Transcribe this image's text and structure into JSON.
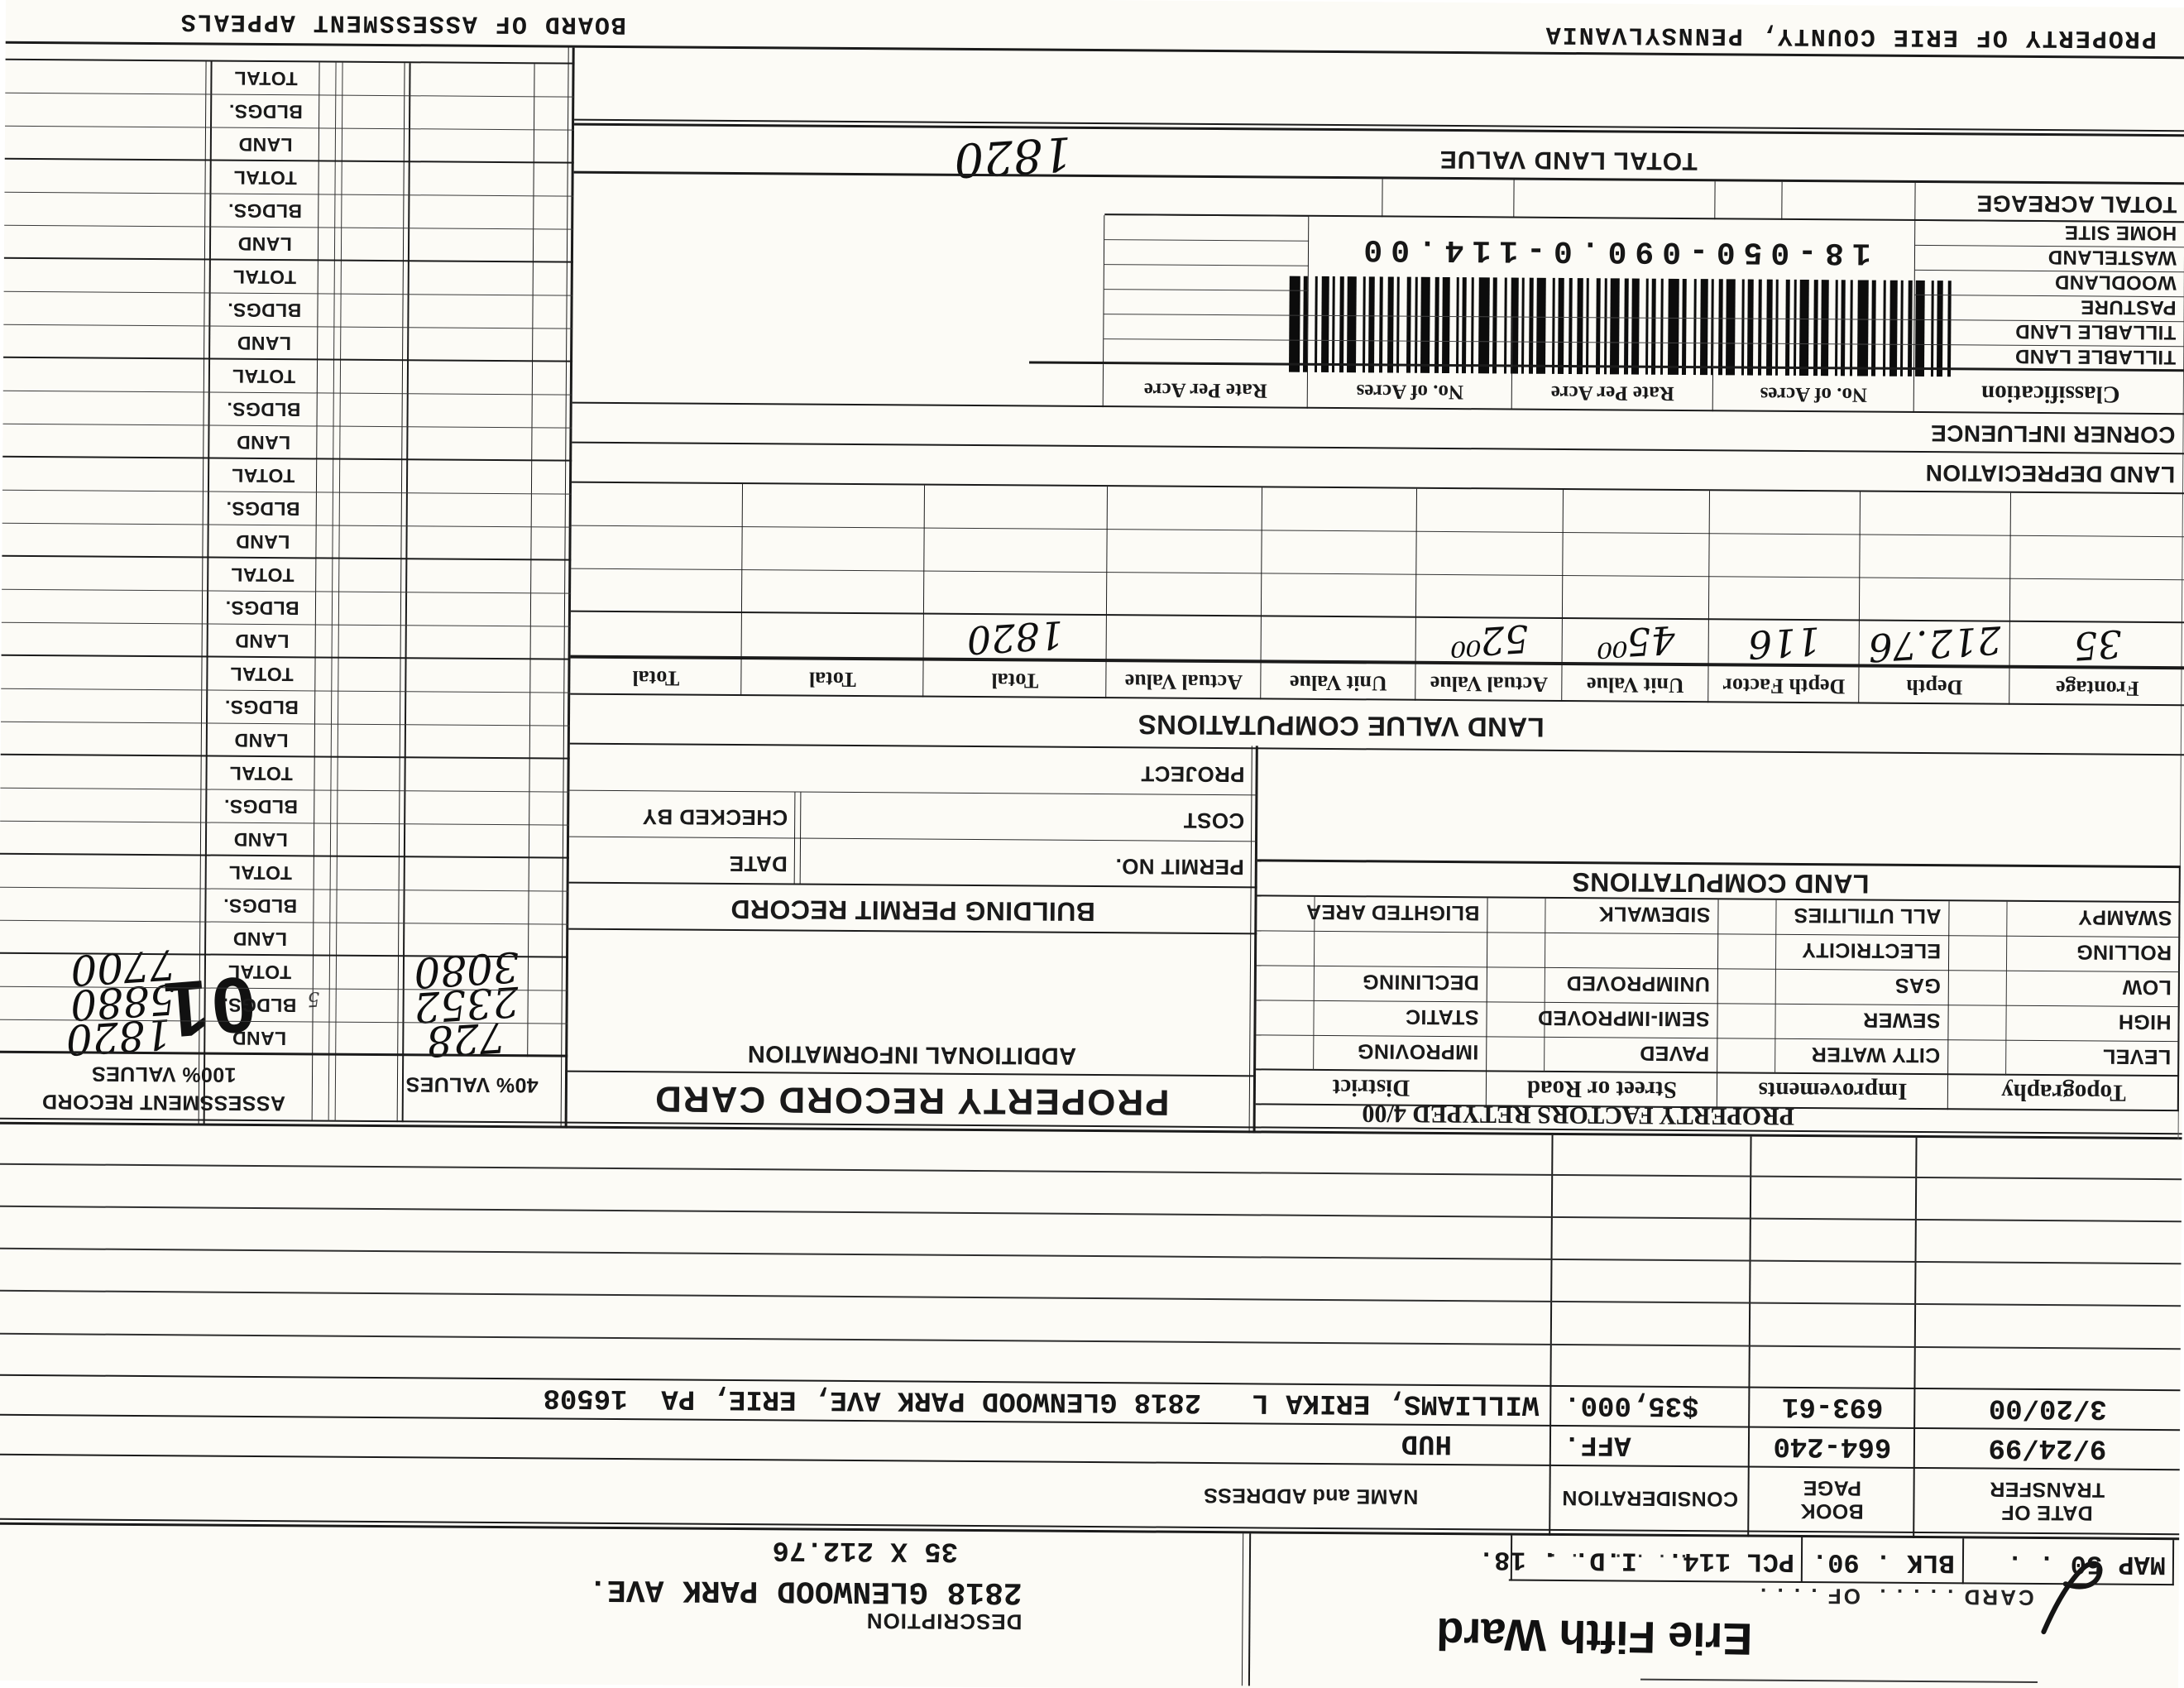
{
  "colors": {
    "paper": "#fcfbf6",
    "ink": "#1a1a1a"
  },
  "stamps": {
    "ward": "Erie Fifth Ward",
    "batch": "01",
    "note": "5"
  },
  "header": {
    "card_of_line": "CARD . . . . .  OF . . . .",
    "map": "MAP 50 . .",
    "blk": "BLK . 90.",
    "pcl": "PCL 114.",
    "pcl_leader": ". . . . . . .",
    "id": "I.D. . 18.",
    "description_label": "DESCRIPTION",
    "address": "2818 GLENWOOD PARK AVE.",
    "dimensions": "35 X 212.76"
  },
  "transfer": {
    "col_date_1": "DATE OF",
    "col_date_2": "TRANSFER",
    "col_book_1": "BOOK",
    "col_book_2": "PAGE",
    "col_consideration": "CONSIDERATION",
    "col_name": "NAME and ADDRESS",
    "rows": [
      {
        "date": "9/24/99",
        "book": "664-240",
        "consideration": "AFF.",
        "name": "HUD"
      },
      {
        "date": "3/20/00",
        "book": "693-61",
        "consideration": "$35,000.",
        "name": "WILLIAMS, ERIKA L   2818 GLENWOOD PARK AVE, ERIE, PA  16508"
      }
    ]
  },
  "titles": {
    "property_record_card": "PROPERTY RECORD CARD",
    "additional_information": "ADDITIONAL INFORMATION",
    "building_permit_record": "BUILDING PERMIT RECORD",
    "land_value_computations": "LAND VALUE COMPUTATIONS",
    "land_computations": "LAND COMPUTATIONS",
    "property_factors": "PROPERTY FACTORS RETYPED 4/00",
    "assessment_record": "ASSESSMENT RECORD",
    "values_100": "100% VALUES",
    "values_40": "40% VALUES",
    "footer_left": "PROPERTY OF ERIE COUNTY, PENNSYLVANIA",
    "footer_right": "BOARD OF ASSESSMENT APPEALS"
  },
  "building_permit": {
    "permit_no": "PERMIT NO.",
    "date": "DATE",
    "cost": "COST",
    "checked_by": "CHECKED BY",
    "project": "PROJECT"
  },
  "land_computations": {
    "columns": [
      "Topography",
      "Improvements",
      "Street or Road",
      "District"
    ],
    "rows": [
      [
        "LEVEL",
        "CITY WATER",
        "PAVED",
        "IMPROVING"
      ],
      [
        "HIGH",
        "SEWER",
        "SEMI-IMPROVED",
        "STATIC"
      ],
      [
        "LOW",
        "GAS",
        "UNIMPROVED",
        "DECLINING"
      ],
      [
        "ROLLING",
        "ELECTRICITY",
        "",
        ""
      ],
      [
        "SWAMPY",
        "ALL UTILITIES",
        "SIDEWALK",
        "BLIGHTED AREA"
      ]
    ]
  },
  "land_value_computations": {
    "headers": [
      "Frontage",
      "Depth",
      "Depth Factor",
      "Unit Value",
      "Actual Value",
      "Unit Value",
      "Actual Value",
      "Total",
      "Total",
      "Total"
    ],
    "values": [
      "35",
      "212.76",
      "116",
      "45⁰⁰",
      "52⁰⁰",
      "",
      "",
      "1820",
      "",
      ""
    ]
  },
  "land_section": {
    "depreciation": "LAND DEPRECIATION",
    "corner": "CORNER INFLUENCE",
    "classification_headers": [
      "Classification",
      "No. of Acres",
      "Rate Per Acre",
      "No. of Acres",
      "Rate Per Acre"
    ],
    "rows": [
      "TILLABLE LAND",
      "TILLABLE LAND",
      "PASTURE",
      "WOODLAND",
      "WASTELAND",
      "HOME SITE"
    ],
    "total_acreage": "TOTAL ACREAGE",
    "total_land_value": "TOTAL LAND VALUE",
    "total_land_value_amount": "1820",
    "barcode_number": "18-050-090.0-114.00"
  },
  "assessment": {
    "row_labels": [
      "LAND",
      "BLDGS.",
      "TOTAL"
    ],
    "group_count": 10,
    "values_100": {
      "land": "1820",
      "bldgs": "5880",
      "total": "7700"
    },
    "values_40": {
      "land": "728",
      "bldgs": "2352",
      "total": "3080"
    }
  }
}
